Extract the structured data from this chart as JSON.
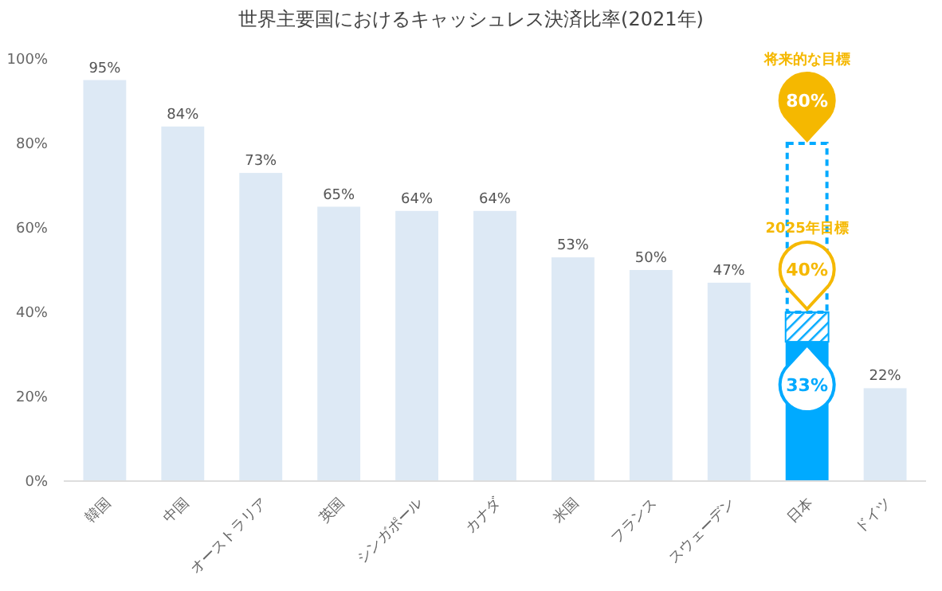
{
  "chart_data": {
    "type": "bar",
    "title": "世界主要国におけるキャッシュレス決済比率(2021年)",
    "categories": [
      "韓国",
      "中国",
      "オーストラリア",
      "英国",
      "シンガポール",
      "カナダ",
      "米国",
      "フランス",
      "スウェーデン",
      "日本",
      "ドイツ"
    ],
    "stacked": true,
    "series": [
      {
        "color": "#dde9f5",
        "colors": [
          "#dde9f5",
          "#dde9f5",
          "#dde9f5",
          "#dde9f5",
          "#dde9f5",
          "#dde9f5",
          "#dde9f5",
          "#dde9f5",
          "#dde9f5",
          "#00aaff",
          "#dde9f5"
        ],
        "values": [
          95,
          84,
          73,
          65,
          64,
          64,
          53,
          50,
          47,
          33,
          22
        ],
        "value_labels": [
          "95%",
          "84%",
          "73%",
          "65%",
          "64%",
          "64%",
          "53%",
          "50%",
          "47%",
          "33%",
          "22%"
        ]
      },
      {
        "color": "#00aaff",
        "values": [
          null,
          null,
          null,
          null,
          null,
          null,
          null,
          null,
          null,
          7,
          null
        ]
      },
      {
        "color": "#00aaff",
        "line_style": "dashed",
        "values": [
          null,
          null,
          null,
          null,
          null,
          null,
          null,
          null,
          null,
          40,
          null
        ]
      }
    ],
    "ylim": [
      0,
      100
    ],
    "yticks": [
      {
        "value": 0,
        "label": "0%"
      },
      {
        "value": 20,
        "label": "20%"
      },
      {
        "value": 40,
        "label": "40%"
      },
      {
        "value": 60,
        "label": "60%"
      },
      {
        "value": 80,
        "label": "80%"
      },
      {
        "value": 100,
        "label": "100%"
      }
    ],
    "grid": false,
    "annotations": [
      {
        "text": "80%",
        "x": "日本",
        "y": 80
      },
      "将来的な目標",
      {
        "text": "40%",
        "x": "日本",
        "y": 40
      },
      "2025年目標"
    ]
  }
}
